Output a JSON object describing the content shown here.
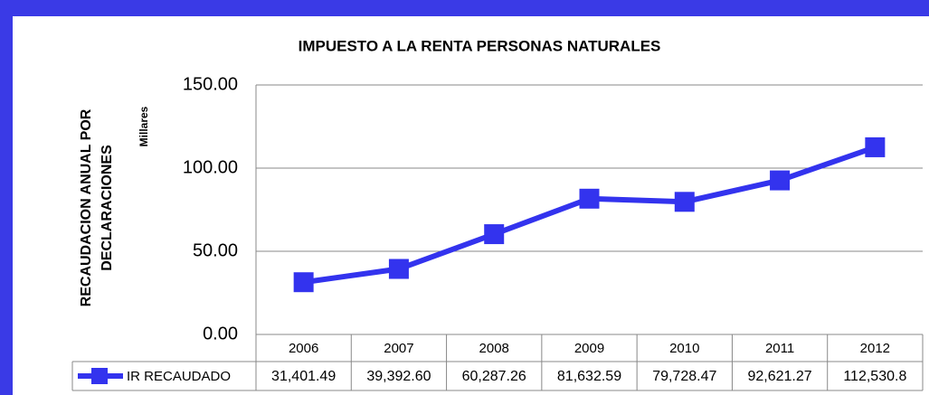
{
  "chart_data": {
    "type": "line",
    "title": "IMPUESTO A LA RENTA PERSONAS NATURALES",
    "y_label": [
      "RECAUDACION  ANUAL POR",
      "DECLARACIONES"
    ],
    "y_unit": "Millares",
    "categories": [
      "2006",
      "2007",
      "2008",
      "2009",
      "2010",
      "2011",
      "2012"
    ],
    "series": [
      {
        "name": "IR RECAUDADO",
        "color": "#3333ee",
        "values": [
          31.40149,
          39.3926,
          60.28726,
          81.63259,
          79.72847,
          92.62127,
          112.5308
        ],
        "value_labels": [
          "31,401.49",
          "39,392.60",
          "60,287.26",
          "81,632.59",
          "79,728.47",
          "92,621.27",
          "112,530.8"
        ]
      }
    ],
    "ylim": [
      0,
      150
    ],
    "yticks": [
      {
        "value": 0,
        "label": "0.00"
      },
      {
        "value": 50,
        "label": "50.00"
      },
      {
        "value": 100,
        "label": "100.00"
      },
      {
        "value": 150,
        "label": "150.00"
      }
    ],
    "grid": true
  }
}
